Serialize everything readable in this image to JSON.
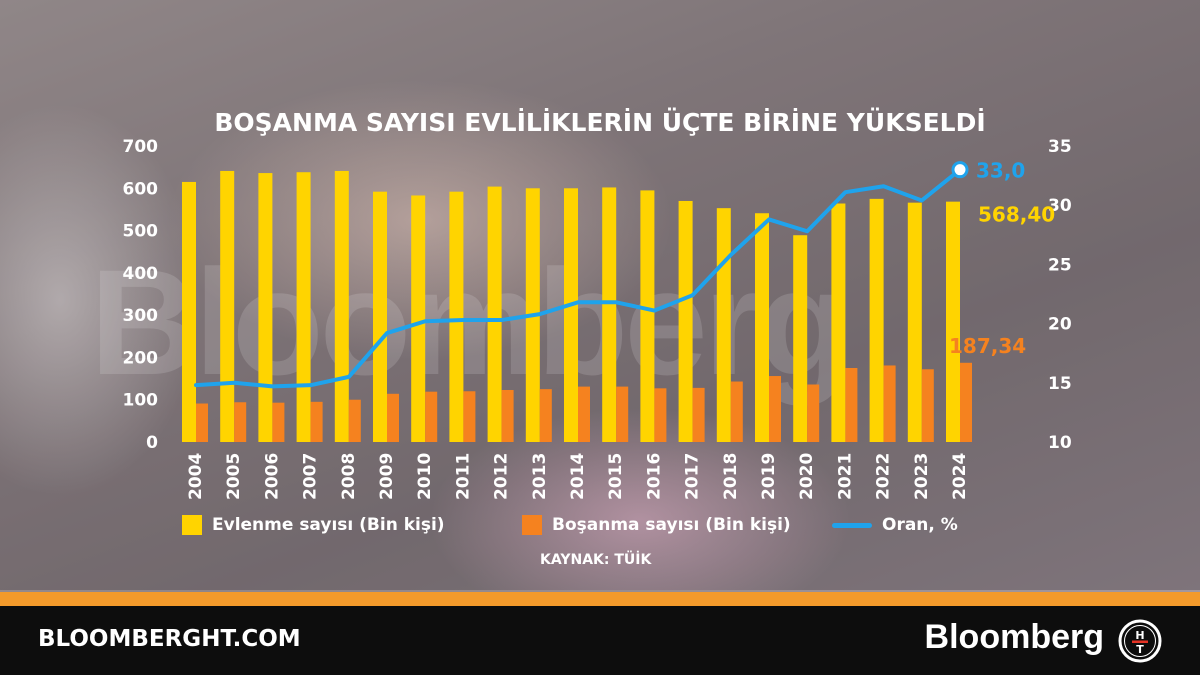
{
  "chart_data": {
    "type": "bar",
    "title": "BOŞANMA SAYISI EVLİLİKLERİN ÜÇTE BİRİNE YÜKSELDİ",
    "categories": [
      "2004",
      "2005",
      "2006",
      "2007",
      "2008",
      "2009",
      "2010",
      "2011",
      "2012",
      "2013",
      "2014",
      "2015",
      "2016",
      "2017",
      "2018",
      "2019",
      "2020",
      "2021",
      "2022",
      "2023",
      "2024"
    ],
    "series": [
      {
        "name": "Evlenme sayısı (Bin kişi)",
        "axis": "left",
        "type": "bar",
        "color": "#ffd400",
        "values": [
          615,
          641,
          636,
          638,
          641,
          592,
          583,
          592,
          604,
          600,
          600,
          602,
          595,
          570,
          553,
          541,
          489,
          564,
          575,
          566,
          568.4
        ]
      },
      {
        "name": "Boşanma sayısı (Bin kişi)",
        "axis": "left",
        "type": "bar",
        "color": "#f5821f",
        "values": [
          91,
          94,
          93,
          95,
          100,
          114,
          119,
          120,
          123,
          125,
          131,
          131,
          127,
          128,
          143,
          156,
          136,
          175,
          181,
          172,
          187.34
        ]
      },
      {
        "name": "Oran, %",
        "axis": "right",
        "type": "line",
        "color": "#1fa3ec",
        "values": [
          14.8,
          15.0,
          14.7,
          14.8,
          15.5,
          19.2,
          20.2,
          20.3,
          20.3,
          20.8,
          21.8,
          21.8,
          21.1,
          22.4,
          25.8,
          28.8,
          27.8,
          31.1,
          31.6,
          30.4,
          33.0
        ]
      }
    ],
    "left_axis": {
      "ylim": [
        0,
        700
      ],
      "ticks": [
        "0",
        "100",
        "200",
        "300",
        "400",
        "500",
        "600",
        "700"
      ]
    },
    "right_axis": {
      "ylim": [
        10,
        35
      ],
      "ticks": [
        "10",
        "15",
        "20",
        "25",
        "30",
        "35"
      ]
    },
    "annotations": {
      "last_marriage": "568,40",
      "last_divorce": "187,34",
      "last_ratio": "33,0"
    },
    "grid": false,
    "legend_position": "bottom"
  },
  "legend": {
    "marriage": "Evlenme sayısı (Bin kişi)",
    "divorce": "Boşanma sayısı (Bin kişi)",
    "ratio": "Oran, %"
  },
  "source": "KAYNAK: TÜİK",
  "footer": {
    "site": "BLOOMBERGHT.COM",
    "brand": "Bloomberg",
    "logo_letters": [
      "H",
      "T"
    ]
  },
  "watermark": "Bloomberg",
  "colors": {
    "marriage": "#ffd400",
    "divorce": "#f5821f",
    "ratio": "#1fa3ec",
    "accent_strip": "#f39a2b",
    "footer_bg": "#0d0d0d"
  }
}
